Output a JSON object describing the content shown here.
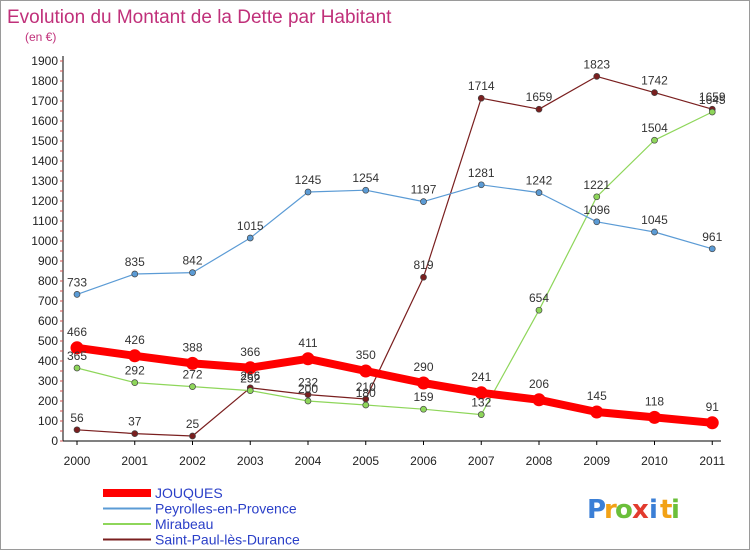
{
  "chart_data": {
    "type": "line",
    "title": "Evolution du Montant de la Dette par Habitant",
    "subtitle": "(en €)",
    "x": [
      "2000",
      "2001",
      "2002",
      "2003",
      "2004",
      "2005",
      "2006",
      "2007",
      "2008",
      "2009",
      "2010",
      "2011"
    ],
    "ylim": [
      0,
      1900
    ],
    "yticks": [
      0,
      100,
      200,
      300,
      400,
      500,
      600,
      700,
      800,
      900,
      1000,
      1100,
      1200,
      1300,
      1400,
      1500,
      1600,
      1700,
      1800,
      1900
    ],
    "grid": false,
    "legend_position": "bottom-left",
    "series": [
      {
        "name": "Saint-Paul-lès-Durance",
        "color": "#7a1f1f",
        "values": [
          56,
          37,
          25,
          266,
          232,
          210,
          819,
          1714,
          1659,
          1823,
          1742,
          1659
        ],
        "labels": [
          "56",
          "37",
          "25",
          "266",
          "232",
          "210",
          "819",
          "1714",
          "1659",
          "1823",
          "1742",
          "1659"
        ]
      },
      {
        "name": "Mirabeau",
        "color": "#8ed65a",
        "values": [
          365,
          292,
          272,
          252,
          200,
          180,
          159,
          132,
          654,
          1221,
          1504,
          1645
        ],
        "labels": [
          "365",
          "292",
          "272",
          "252",
          "200",
          "180",
          "159",
          "132",
          "654",
          "1221",
          "1504",
          "1645"
        ]
      },
      {
        "name": "Peyrolles-en-Provence",
        "color": "#5b9bd5",
        "values": [
          733,
          835,
          842,
          1015,
          1245,
          1254,
          1197,
          1281,
          1242,
          1096,
          1045,
          961
        ],
        "labels": [
          "733",
          "835",
          "842",
          "1015",
          "1245",
          "1254",
          "1197",
          "1281",
          "1242",
          "1096",
          "1045",
          "961"
        ]
      },
      {
        "name": "JOUQUES",
        "color": "#ff0000",
        "values": [
          466,
          426,
          388,
          366,
          411,
          350,
          290,
          241,
          206,
          145,
          118,
          91
        ],
        "labels": [
          "466",
          "426",
          "388",
          "366",
          "411",
          "350",
          "290",
          "241",
          "206",
          "145",
          "118",
          "91"
        ]
      }
    ],
    "legend_order": [
      "JOUQUES",
      "Peyrolles-en-Provence",
      "Mirabeau",
      "Saint-Paul-lès-Durance"
    ]
  },
  "brand": {
    "letters": [
      "P",
      "r",
      "o",
      "x",
      "i",
      "t",
      "i"
    ],
    "colors": [
      "#3b7fd6",
      "#f2a216",
      "#6bbf3a",
      "#e23b2e",
      "#3b7fd6",
      "#f2a216",
      "#6bbf3a"
    ]
  }
}
